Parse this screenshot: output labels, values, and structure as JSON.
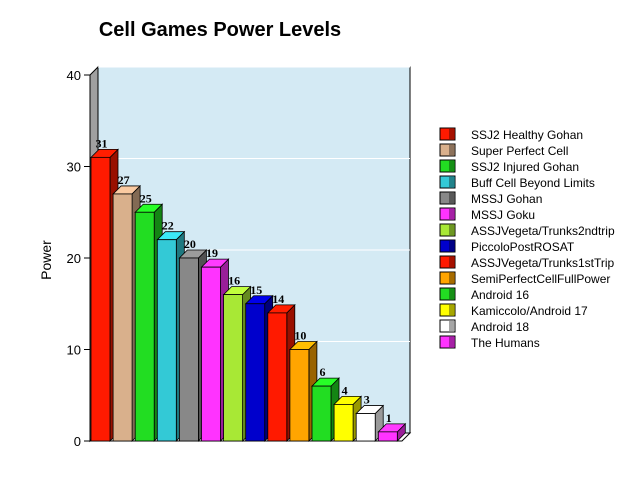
{
  "chart_data": {
    "type": "bar",
    "title": "Cell Games Power Levels",
    "xlabel": "",
    "ylabel": "Power",
    "ylim": [
      0,
      40
    ],
    "yticks": [
      0,
      10,
      20,
      30,
      40
    ],
    "grid": true,
    "legend_position": "right",
    "plot_background": "#d4eaf4",
    "categories": [
      "SSJ2 Healthy Gohan",
      "Super Perfect Cell",
      "SSJ2 Injured Gohan",
      "Buff Cell Beyond Limits",
      "MSSJ Gohan",
      "MSSJ Goku",
      "ASSJVegeta/Trunks2ndtrip",
      "PiccoloPostROSAT",
      "ASSJVegeta/Trunks1stTrip",
      "SemiPerfectCellFullPower",
      "Android 16",
      "Kamiccolo/Android 17",
      "Android 18",
      "The Humans"
    ],
    "values": [
      31,
      27,
      25,
      22,
      20,
      19,
      16,
      15,
      14,
      10,
      6,
      4,
      3,
      1
    ],
    "colors": [
      "#ff1a00",
      "#d9b08c",
      "#22dd22",
      "#33c9d6",
      "#888888",
      "#ff33ff",
      "#a8e835",
      "#0000cc",
      "#ff1a00",
      "#ffa500",
      "#22dd22",
      "#ffff00",
      "#ffffff",
      "#ff33ff"
    ]
  }
}
